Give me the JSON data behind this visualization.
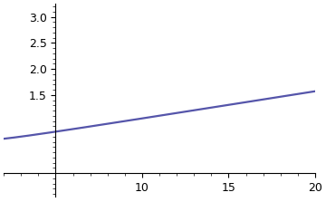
{
  "xlim": [
    2,
    20
  ],
  "ylim": [
    -0.45,
    3.25
  ],
  "xticks": [
    10,
    15,
    20
  ],
  "yticks": [
    1.5,
    2.0,
    2.5,
    3.0
  ],
  "line_color": "#5555aa",
  "line_width": 1.6,
  "epsilon": 0.1,
  "x_start": 2.0,
  "x_end": 20.0,
  "n_points": 1000,
  "background_color": "#ffffff",
  "spine_x": 5.0
}
